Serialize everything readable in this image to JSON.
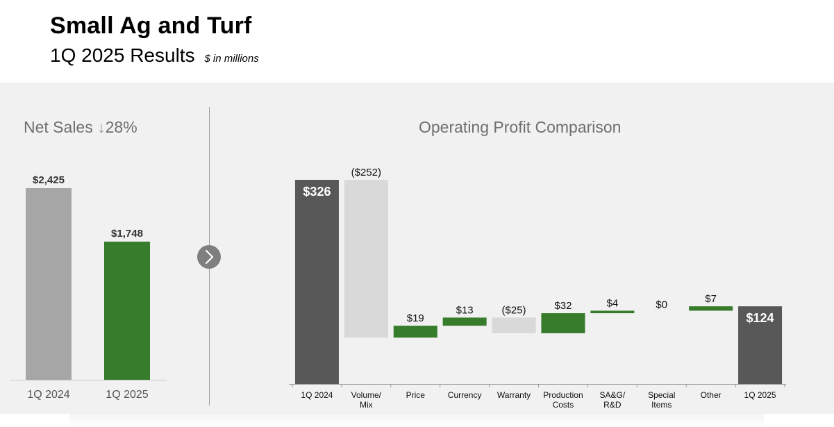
{
  "header": {
    "title": "Small Ag and Turf",
    "subtitle": "1Q 2025 Results",
    "units_note": "$ in millions"
  },
  "colors": {
    "panel_bg": "#f1f1f1",
    "green": "#367c2b",
    "dark_gray": "#585858",
    "light_gray": "#d9d9d9",
    "mid_gray": "#a6a6a6"
  },
  "icons": {
    "divider_button": "chevron-right-icon"
  },
  "chart_data": [
    {
      "type": "bar",
      "title": "Net Sales",
      "change_label": "28%",
      "change_direction": "down",
      "categories": [
        "1Q 2024",
        "1Q 2025"
      ],
      "values": [
        2425,
        1748
      ],
      "data_labels": [
        "$2,425",
        "$1,748"
      ],
      "bar_colors": [
        "#a6a6a6",
        "#367c2b"
      ],
      "ylim": [
        0,
        2425
      ]
    },
    {
      "type": "bar",
      "subtype": "waterfall",
      "title": "Operating Profit Comparison",
      "categories": [
        "1Q 2024",
        "Volume/\nMix",
        "Price",
        "Currency",
        "Warranty",
        "Production\nCosts",
        "SA&G/\nR&D",
        "Special\nItems",
        "Other",
        "1Q 2025"
      ],
      "values": [
        326,
        -252,
        19,
        13,
        -25,
        32,
        4,
        0,
        7,
        124
      ],
      "kinds": [
        "total",
        "delta",
        "delta",
        "delta",
        "delta",
        "delta",
        "delta",
        "delta",
        "delta",
        "total"
      ],
      "data_labels": [
        "$326",
        "($252)",
        "$19",
        "$13",
        "($25)",
        "$32",
        "$4",
        "$0",
        "$7",
        "$124"
      ],
      "legend_colors": {
        "total": "#585858",
        "increase": "#367c2b",
        "decrease": "#d9d9d9"
      },
      "ylim": [
        0,
        326
      ]
    }
  ]
}
